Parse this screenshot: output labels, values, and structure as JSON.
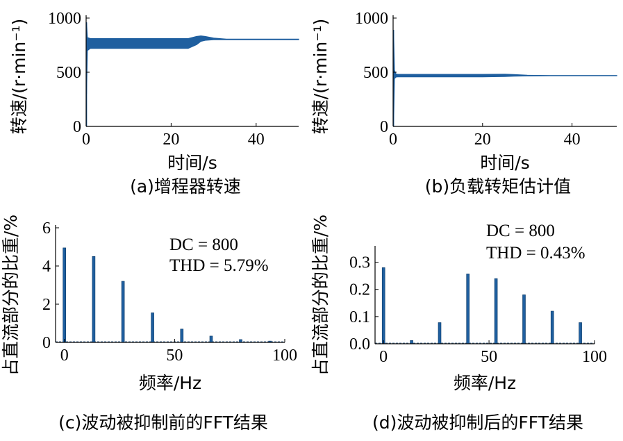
{
  "colors": {
    "series": "#1f5f9f",
    "axis": "#000000"
  },
  "chart_data": [
    {
      "id": "a",
      "type": "area",
      "caption": "(a)增程器转速",
      "xlabel": "时间/s",
      "ylabel": "转速/(r·min⁻¹)",
      "xlim": [
        0,
        50
      ],
      "ylim": [
        0,
        1000
      ],
      "xticks": [
        0,
        20,
        40
      ],
      "yticks": [
        0,
        500,
        1000
      ],
      "band": {
        "x": [
          0.1,
          0.3,
          1,
          5,
          10,
          15,
          20,
          24,
          26,
          27,
          28,
          30,
          33,
          40,
          50
        ],
        "upper": [
          960,
          820,
          810,
          810,
          810,
          810,
          810,
          810,
          830,
          835,
          830,
          815,
          805,
          805,
          805
        ],
        "lower": [
          300,
          700,
          720,
          720,
          720,
          720,
          720,
          720,
          755,
          785,
          795,
          800,
          800,
          800,
          800
        ]
      }
    },
    {
      "id": "b",
      "type": "area",
      "caption": "(b)负载转矩估计值",
      "xlabel": "时间/s",
      "ylabel": "转速/(r·min⁻¹)",
      "xlim": [
        0,
        50
      ],
      "ylim": [
        0,
        1000
      ],
      "xticks": [
        0,
        20,
        40
      ],
      "yticks": [
        0,
        500,
        1000
      ],
      "band": {
        "x": [
          0.1,
          0.3,
          0.6,
          1,
          5,
          10,
          15,
          20,
          25,
          27,
          30,
          35,
          40,
          50
        ],
        "upper": [
          890,
          520,
          485,
          480,
          480,
          480,
          480,
          480,
          482,
          478,
          472,
          470,
          470,
          470
        ],
        "lower": [
          0,
          440,
          455,
          458,
          458,
          458,
          458,
          458,
          460,
          464,
          466,
          468,
          468,
          468
        ]
      }
    },
    {
      "id": "c",
      "type": "bar",
      "caption": "(c)波动被抑制前的FFT结果",
      "xlabel": "频率/Hz",
      "ylabel": "占直流部分的比重/%",
      "xlim": [
        -4,
        100
      ],
      "ylim": [
        0,
        6
      ],
      "xticks": [
        0,
        50,
        100
      ],
      "yticks": [
        0,
        2,
        4,
        6
      ],
      "x": [
        0,
        13.3,
        26.6,
        40,
        53.3,
        66.6,
        80,
        93.3
      ],
      "values": [
        4.95,
        4.5,
        3.2,
        1.55,
        0.7,
        0.33,
        0.15,
        0.07
      ],
      "annotations": [
        "DC = 800",
        "THD = 5.79%"
      ]
    },
    {
      "id": "d",
      "type": "bar",
      "caption": "(d)波动被抑制后的FFT结果",
      "xlabel": "频率/Hz",
      "ylabel": "占直流部分的比重/%",
      "xlim": [
        -4,
        100
      ],
      "ylim": [
        0,
        0.35
      ],
      "xticks": [
        0,
        50,
        100
      ],
      "yticks": [
        0.0,
        0.1,
        0.2,
        0.3
      ],
      "x": [
        0,
        13.3,
        26.6,
        40,
        53.3,
        66.6,
        80,
        93.3
      ],
      "values": [
        0.28,
        0.012,
        0.078,
        0.257,
        0.24,
        0.18,
        0.12,
        0.078
      ],
      "annotations": [
        "DC = 800",
        "THD = 0.43%"
      ]
    }
  ]
}
